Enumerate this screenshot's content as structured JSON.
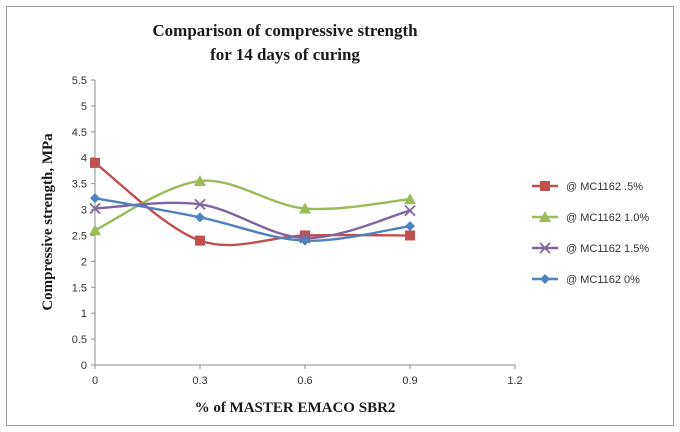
{
  "chart_data": {
    "type": "line",
    "title": [
      "Comparison  of  compressive  strength",
      "for 14 days of curing"
    ],
    "xlabel": "% of MASTER EMACO SBR2",
    "ylabel": "Compressive  strength, MPa",
    "xlim": [
      0,
      1.2
    ],
    "ylim": [
      0,
      5.5
    ],
    "xticks": [
      "0",
      "0.3",
      "0.6",
      "0.9",
      "1.2"
    ],
    "yticks": [
      "0",
      "0.5",
      "1",
      "1.5",
      "2",
      "2.5",
      "3",
      "3.5",
      "4",
      "4.5",
      "5",
      "5.5"
    ],
    "grid": false,
    "legend_position": "right",
    "series": [
      {
        "name": "@ MC1162 .5%",
        "color": "#c0504d",
        "marker": "square",
        "x": [
          0,
          0.3,
          0.6,
          0.9
        ],
        "y": [
          3.9,
          2.4,
          2.5,
          2.5
        ]
      },
      {
        "name": "@ MC1162 1.0%",
        "color": "#9bbb59",
        "marker": "triangle",
        "x": [
          0,
          0.3,
          0.6,
          0.9
        ],
        "y": [
          2.6,
          3.55,
          3.02,
          3.2
        ]
      },
      {
        "name": "@ MC1162 1.5%",
        "color": "#8064a2",
        "marker": "cross",
        "x": [
          0,
          0.3,
          0.6,
          0.9
        ],
        "y": [
          3.02,
          3.1,
          2.45,
          2.98
        ]
      },
      {
        "name": "@ MC1162 0%",
        "color": "#4f81bd",
        "marker": "diamond",
        "x": [
          0,
          0.3,
          0.6,
          0.9
        ],
        "y": [
          3.22,
          2.85,
          2.4,
          2.68
        ]
      }
    ]
  }
}
